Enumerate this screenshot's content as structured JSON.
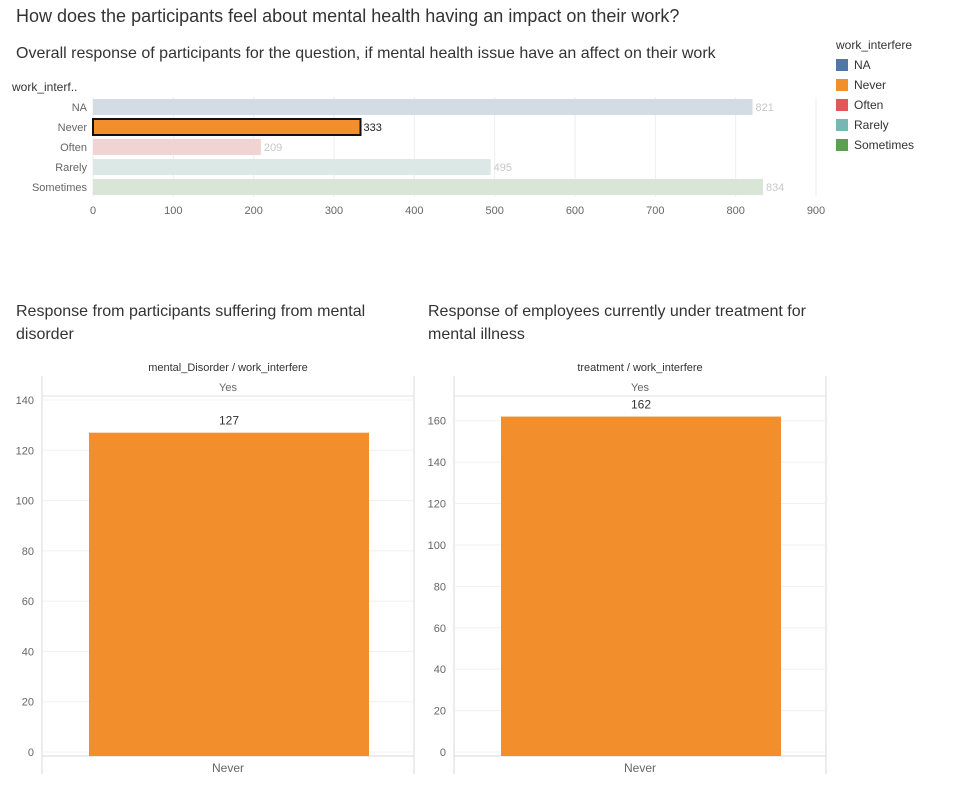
{
  "dashboard": {
    "title": "How does the participants feel about mental health having an impact on their work?"
  },
  "legend": {
    "title": "work_interfere",
    "items": [
      {
        "label": "NA",
        "color": "#4e79a7"
      },
      {
        "label": "Never",
        "color": "#f28e2b"
      },
      {
        "label": "Often",
        "color": "#e15759"
      },
      {
        "label": "Rarely",
        "color": "#76b7b2"
      },
      {
        "label": "Sometimes",
        "color": "#59a14f"
      }
    ]
  },
  "chart_data": [
    {
      "type": "bar",
      "orientation": "horizontal",
      "title": "Overall response of participants for the question, if mental health issue have an affect on their work",
      "row_header": "work_interf..",
      "categories": [
        "NA",
        "Never",
        "Often",
        "Rarely",
        "Sometimes"
      ],
      "values": [
        821,
        333,
        209,
        495,
        834
      ],
      "highlighted": "Never",
      "colors": [
        "#d3dce5",
        "#f28e2b",
        "#f2d3d4",
        "#dbe8e5",
        "#d9e5d6"
      ],
      "xlim": [
        0,
        900
      ],
      "xticks": [
        0,
        100,
        200,
        300,
        400,
        500,
        600,
        700,
        800,
        900
      ],
      "grid": true
    },
    {
      "type": "bar",
      "title": "Response from participants suffering from mental disorder",
      "header": "mental_Disorder / work_interfere",
      "column": "Yes",
      "categories": [
        "Never"
      ],
      "values": [
        127
      ],
      "color": "#f28e2b",
      "ylim": [
        0,
        140
      ],
      "yticks": [
        0,
        20,
        40,
        60,
        80,
        100,
        120,
        140
      ],
      "grid": true
    },
    {
      "type": "bar",
      "title": "Response of employees currently under treatment for mental illness",
      "header": "treatment / work_interfere",
      "column": "Yes",
      "categories": [
        "Never"
      ],
      "values": [
        162
      ],
      "color": "#f28e2b",
      "ylim": [
        0,
        170
      ],
      "yticks": [
        0,
        20,
        40,
        60,
        80,
        100,
        120,
        140,
        160
      ],
      "grid": true
    }
  ]
}
